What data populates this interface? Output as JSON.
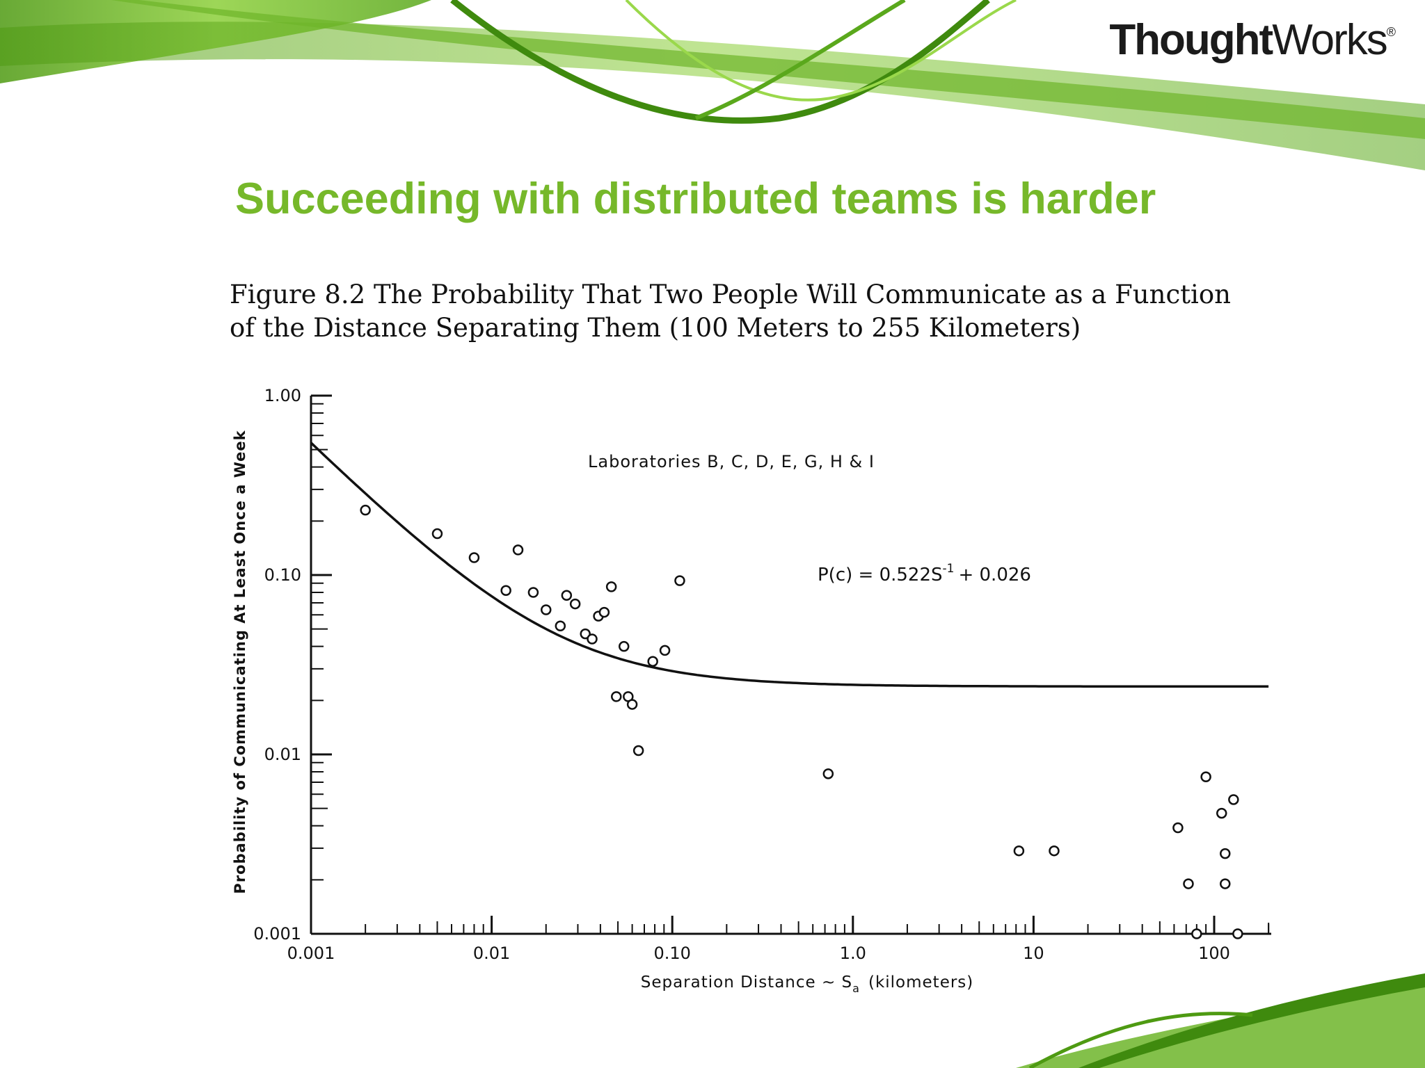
{
  "brand": {
    "logo_bold": "Thought",
    "logo_light": "Works",
    "logo_mark": "®",
    "accent_color": "#76b82a"
  },
  "slide": {
    "title": "Succeeding with distributed teams is harder"
  },
  "figure": {
    "caption_line1": "Figure 8.2 The Probability That Two People Will Communicate as a Function",
    "caption_line2": "of the Distance Separating Them (100 Meters to 255 Kilometers)"
  },
  "chart_data": {
    "type": "scatter",
    "title": "",
    "annotation": "Laboratories B, C, D, E, G, H & I",
    "equation": {
      "prefix": "P(c) = 0.522S",
      "exponent": "-1",
      "suffix": "+ 0.026"
    },
    "xlabel": {
      "prefix": "Separation Distance ~ S",
      "subscript": "a",
      "suffix": "(kilometers)"
    },
    "ylabel": "Probability of Communicating At Least Once a Week",
    "x_scale": "log",
    "y_scale": "log",
    "xlim": [
      0.001,
      200
    ],
    "ylim": [
      0.001,
      1.0
    ],
    "x_ticks": [
      {
        "value": 0.001,
        "label": "0.001"
      },
      {
        "value": 0.01,
        "label": "0.01"
      },
      {
        "value": 0.1,
        "label": "0.10"
      },
      {
        "value": 1,
        "label": "1.0"
      },
      {
        "value": 10,
        "label": "10"
      },
      {
        "value": 100,
        "label": "100"
      }
    ],
    "y_ticks": [
      {
        "value": 0.001,
        "label": "0.001"
      },
      {
        "value": 0.01,
        "label": "0.01"
      },
      {
        "value": 0.1,
        "label": "0.10"
      },
      {
        "value": 1.0,
        "label": "1.00"
      }
    ],
    "grid": false,
    "fit_curve": {
      "a": 0.522,
      "b": 0.026,
      "x_range": [
        0.001,
        200
      ]
    },
    "points": [
      {
        "x": 0.002,
        "y": 0.23
      },
      {
        "x": 0.005,
        "y": 0.17
      },
      {
        "x": 0.008,
        "y": 0.125
      },
      {
        "x": 0.012,
        "y": 0.082
      },
      {
        "x": 0.014,
        "y": 0.138
      },
      {
        "x": 0.017,
        "y": 0.08
      },
      {
        "x": 0.02,
        "y": 0.064
      },
      {
        "x": 0.024,
        "y": 0.052
      },
      {
        "x": 0.026,
        "y": 0.077
      },
      {
        "x": 0.029,
        "y": 0.069
      },
      {
        "x": 0.033,
        "y": 0.047
      },
      {
        "x": 0.036,
        "y": 0.044
      },
      {
        "x": 0.039,
        "y": 0.059
      },
      {
        "x": 0.042,
        "y": 0.062
      },
      {
        "x": 0.046,
        "y": 0.086
      },
      {
        "x": 0.049,
        "y": 0.021
      },
      {
        "x": 0.054,
        "y": 0.04
      },
      {
        "x": 0.057,
        "y": 0.021
      },
      {
        "x": 0.06,
        "y": 0.019
      },
      {
        "x": 0.065,
        "y": 0.0105
      },
      {
        "x": 0.078,
        "y": 0.033
      },
      {
        "x": 0.091,
        "y": 0.038
      },
      {
        "x": 0.11,
        "y": 0.093
      },
      {
        "x": 0.73,
        "y": 0.0078
      },
      {
        "x": 8.3,
        "y": 0.0029
      },
      {
        "x": 13,
        "y": 0.0029
      },
      {
        "x": 63,
        "y": 0.0039
      },
      {
        "x": 72,
        "y": 0.0019
      },
      {
        "x": 80,
        "y": 0.001
      },
      {
        "x": 90,
        "y": 0.0075
      },
      {
        "x": 110,
        "y": 0.0047
      },
      {
        "x": 115,
        "y": 0.0028
      },
      {
        "x": 115,
        "y": 0.0019
      },
      {
        "x": 128,
        "y": 0.0056
      },
      {
        "x": 135,
        "y": 0.001
      }
    ]
  }
}
